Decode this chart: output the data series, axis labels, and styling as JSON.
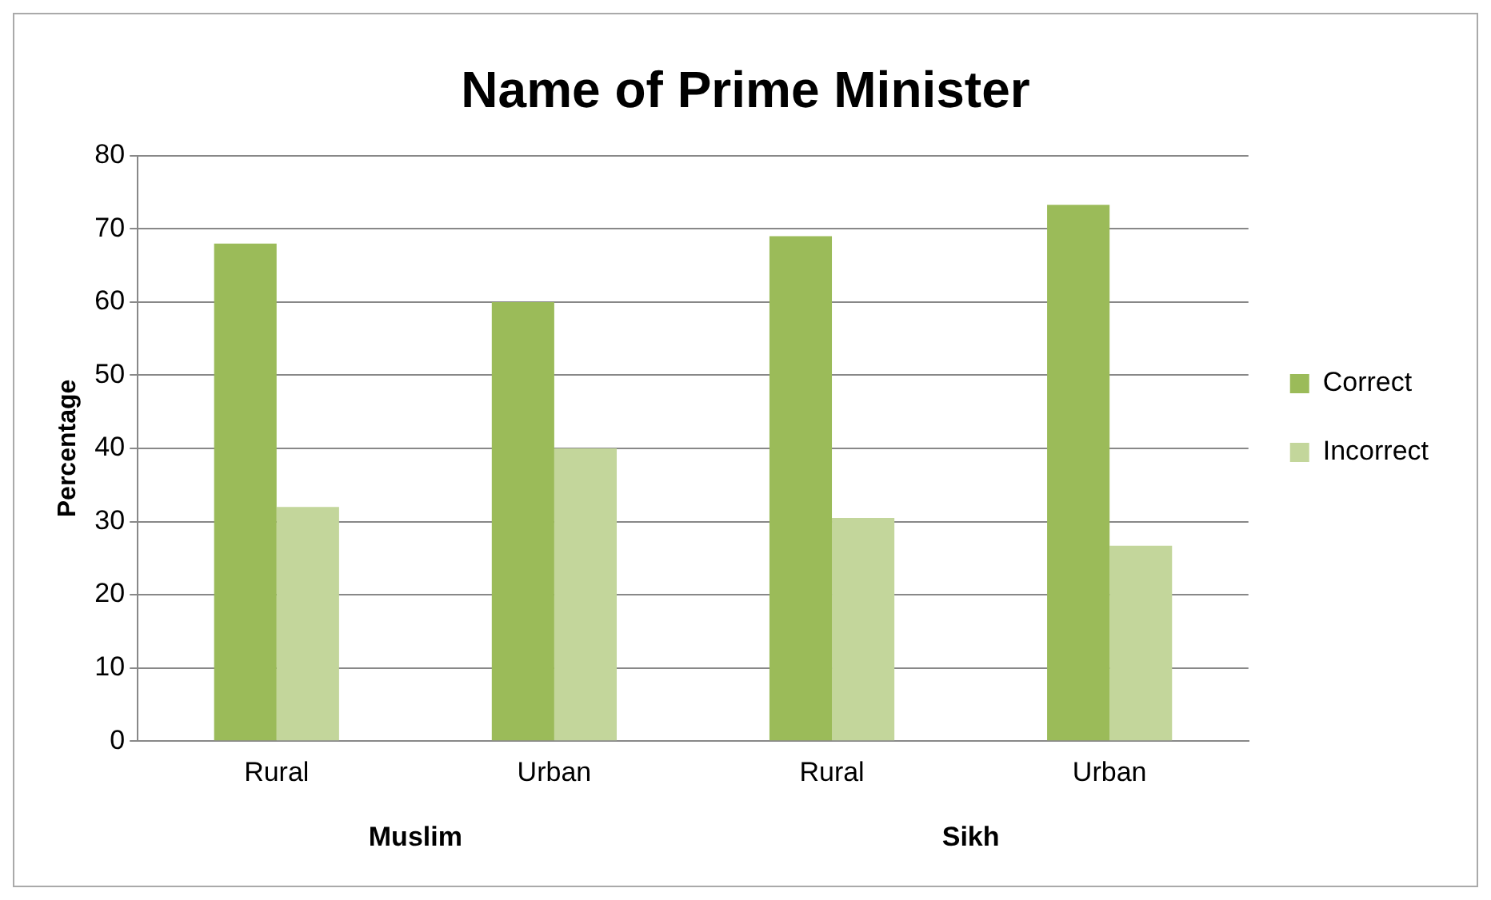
{
  "chart_data": {
    "type": "bar",
    "title": "Name of Prime Minister",
    "ylabel": "Percentage",
    "categories": [
      "Rural",
      "Urban",
      "Rural",
      "Urban"
    ],
    "series": [
      {
        "name": "Correct",
        "color": "#9bbb59",
        "values": [
          68,
          60,
          69,
          73.3
        ]
      },
      {
        "name": "Incorrect",
        "color": "#c3d69b",
        "values": [
          32,
          40,
          30.5,
          26.7
        ]
      }
    ],
    "annotations": [
      "Muslim",
      "Sikh"
    ],
    "ylim": [
      0,
      80
    ],
    "yticks": [
      0,
      10,
      20,
      30,
      40,
      50,
      60,
      70,
      80
    ],
    "grid": "y",
    "legend": "right"
  }
}
